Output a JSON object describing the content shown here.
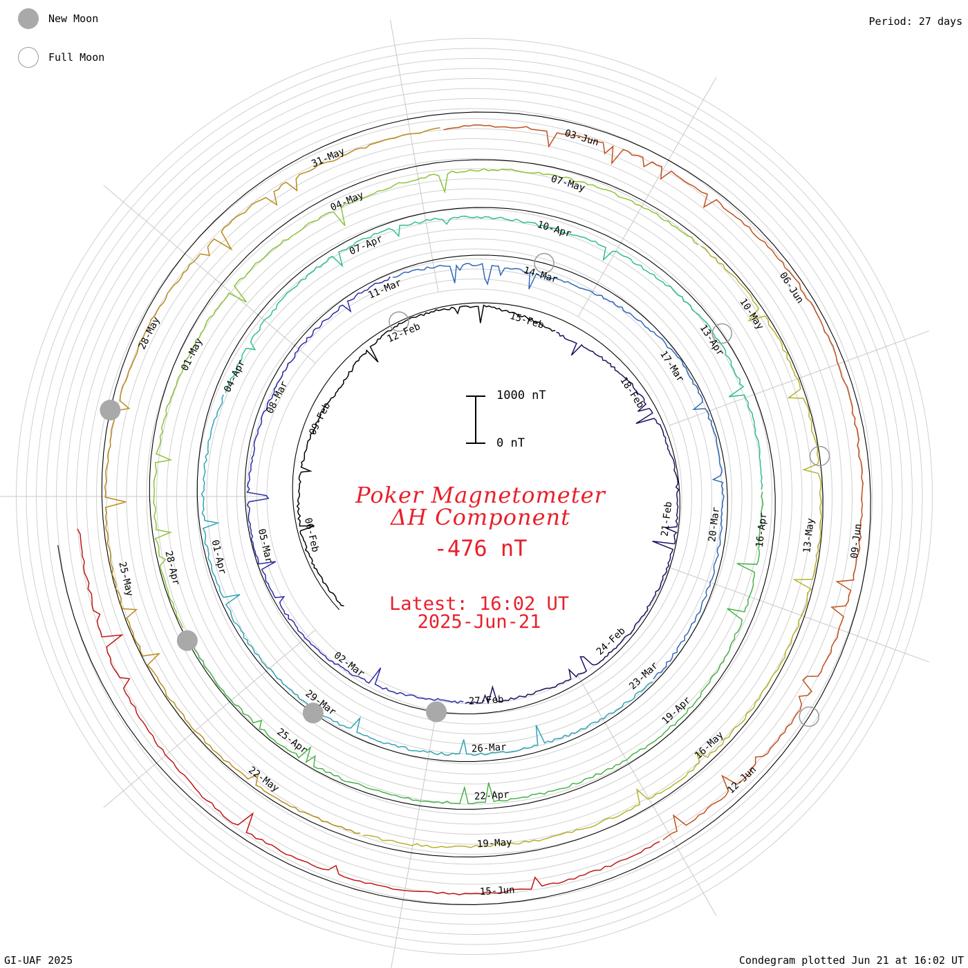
{
  "legend": {
    "new_moon": "New Moon",
    "full_moon": "Full Moon"
  },
  "period_label": "Period: 27 days",
  "credit": "GI-UAF 2025",
  "plotted": "Condegram plotted Jun 21 at 16:02 UT",
  "title_line1": "Poker Magnetometer",
  "title_line2": "ΔH Component",
  "current_value": "-476 nT",
  "latest_line1": "Latest: 16:02 UT",
  "latest_line2": "2025-Jun-21",
  "scale": {
    "top_label": "1000 nT",
    "bottom_label": "0 nT"
  },
  "chart_data": {
    "type": "line",
    "title": "Poker Magnetometer ΔH Component",
    "unit": "nT",
    "period_days": 27,
    "start_date": "2025-02-04",
    "end_date": "2025-06-21",
    "date_labels": [
      "06-Feb",
      "09-Feb",
      "12-Feb",
      "15-Feb",
      "18-Feb",
      "21-Feb",
      "24-Feb",
      "27-Feb",
      "02-Mar",
      "05-Mar",
      "08-Mar",
      "11-Mar",
      "14-Mar",
      "17-Mar",
      "20-Mar",
      "23-Mar",
      "26-Mar",
      "29-Mar",
      "01-Apr",
      "04-Apr",
      "07-Apr",
      "10-Apr",
      "13-Apr",
      "16-Apr",
      "19-Apr",
      "22-Apr",
      "25-Apr",
      "28-Apr",
      "01-May",
      "04-May",
      "07-May",
      "10-May",
      "13-May",
      "16-May",
      "19-May",
      "22-May",
      "25-May",
      "28-May",
      "31-May",
      "03-Jun",
      "06-Jun",
      "09-Jun",
      "12-Jun",
      "15-Jun"
    ],
    "new_moon_dates": [
      "2025-02-28",
      "2025-03-29",
      "2025-04-27",
      "2025-05-27"
    ],
    "full_moon_dates": [
      "2025-02-12",
      "2025-03-14",
      "2025-04-13",
      "2025-05-12",
      "2025-06-11"
    ],
    "series_colors": [
      "#000000",
      "#1a1060",
      "#2a2aa8",
      "#2f67b8",
      "#2fa3b4",
      "#2fbf8a",
      "#47b347",
      "#8cc33a",
      "#b5b22a",
      "#b98a1c",
      "#c0501c",
      "#c01515"
    ],
    "samples": [
      {
        "date": "2025-02-04",
        "h": -120
      },
      {
        "date": "2025-02-06",
        "h": -60
      },
      {
        "date": "2025-02-08",
        "h": -180
      },
      {
        "date": "2025-02-10",
        "h": -300
      },
      {
        "date": "2025-02-12",
        "h": -40
      },
      {
        "date": "2025-02-14",
        "h": -80
      },
      {
        "date": "2025-02-16",
        "h": -320
      },
      {
        "date": "2025-02-18",
        "h": -150
      },
      {
        "date": "2025-02-20",
        "h": -40
      },
      {
        "date": "2025-02-22",
        "h": -60
      },
      {
        "date": "2025-02-24",
        "h": -90
      },
      {
        "date": "2025-02-26",
        "h": -200
      },
      {
        "date": "2025-02-28",
        "h": -260
      },
      {
        "date": "2025-03-02",
        "h": -120
      },
      {
        "date": "2025-03-05",
        "h": -30
      },
      {
        "date": "2025-03-08",
        "h": -150
      },
      {
        "date": "2025-03-11",
        "h": -80
      },
      {
        "date": "2025-03-14",
        "h": -280
      },
      {
        "date": "2025-03-17",
        "h": -40
      },
      {
        "date": "2025-03-20",
        "h": -110
      },
      {
        "date": "2025-03-23",
        "h": -70
      },
      {
        "date": "2025-03-26",
        "h": -160
      },
      {
        "date": "2025-03-29",
        "h": -90
      },
      {
        "date": "2025-04-01",
        "h": -60
      },
      {
        "date": "2025-04-04",
        "h": -230
      },
      {
        "date": "2025-04-07",
        "h": -120
      },
      {
        "date": "2025-04-10",
        "h": -260
      },
      {
        "date": "2025-04-13",
        "h": -140
      },
      {
        "date": "2025-04-16",
        "h": -300
      },
      {
        "date": "2025-04-19",
        "h": -90
      },
      {
        "date": "2025-04-22",
        "h": -150
      },
      {
        "date": "2025-04-25",
        "h": -70
      },
      {
        "date": "2025-04-28",
        "h": -40
      },
      {
        "date": "2025-05-01",
        "h": -210
      },
      {
        "date": "2025-05-04",
        "h": -320
      },
      {
        "date": "2025-05-07",
        "h": -160
      },
      {
        "date": "2025-05-10",
        "h": -60
      },
      {
        "date": "2025-05-13",
        "h": -40
      },
      {
        "date": "2025-05-16",
        "h": -110
      },
      {
        "date": "2025-05-19",
        "h": -230
      },
      {
        "date": "2025-05-22",
        "h": -80
      },
      {
        "date": "2025-05-25",
        "h": -30
      },
      {
        "date": "2025-05-28",
        "h": -180
      },
      {
        "date": "2025-05-31",
        "h": -350
      },
      {
        "date": "2025-06-03",
        "h": -260
      },
      {
        "date": "2025-06-06",
        "h": -90
      },
      {
        "date": "2025-06-09",
        "h": -200
      },
      {
        "date": "2025-06-12",
        "h": -280
      },
      {
        "date": "2025-06-15",
        "h": -240
      },
      {
        "date": "2025-06-18",
        "h": -160
      },
      {
        "date": "2025-06-21",
        "h": -476
      }
    ]
  }
}
